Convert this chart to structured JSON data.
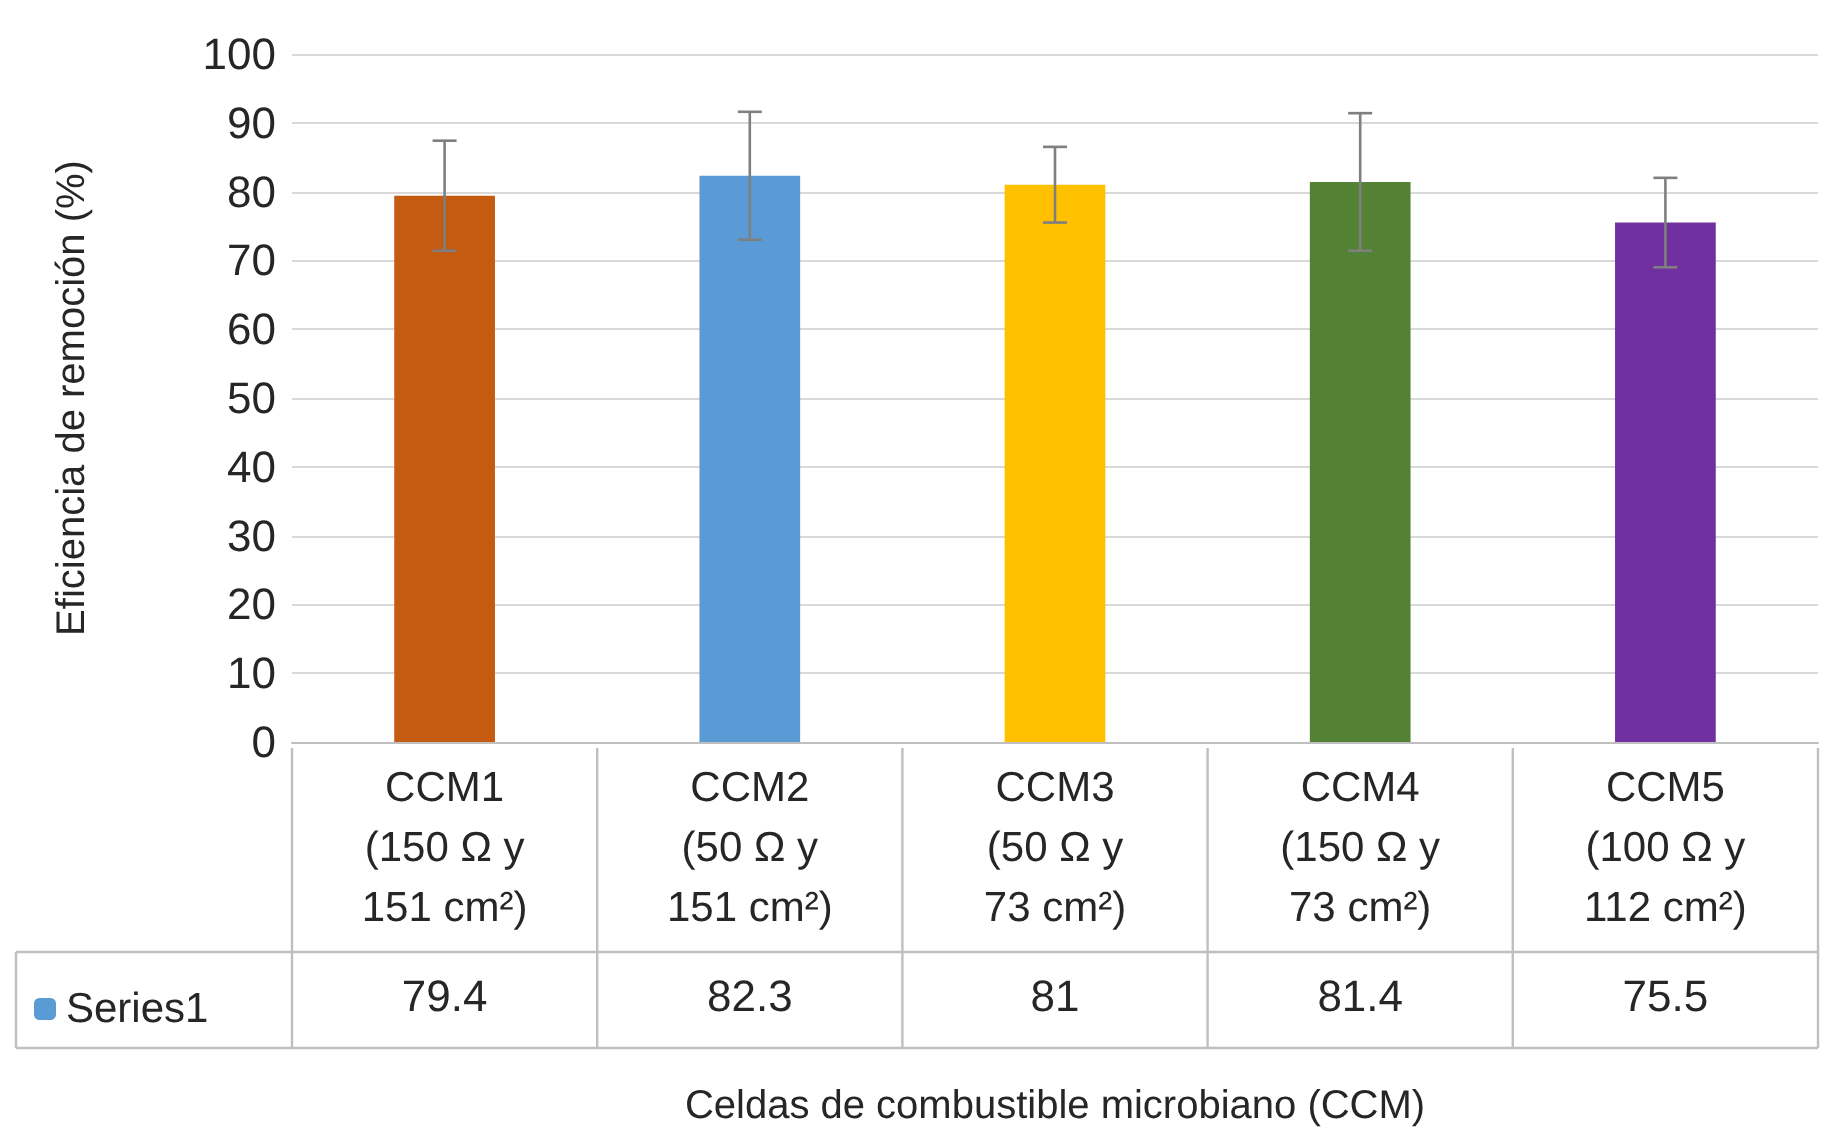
{
  "chart_data": {
    "type": "bar",
    "xlabel": "Celdas de combustible microbiano (CCM)",
    "ylabel": "Eficiencia de remoción (%)",
    "categories": [
      "CCM1\n(150 Ω y\n151 cm²)",
      "CCM2\n(50 Ω y\n151 cm²)",
      "CCM3\n(50 Ω y\n73 cm²)",
      "CCM4\n(150 Ω y\n73 cm²)",
      "CCM5\n(100 Ω y\n112 cm²)"
    ],
    "series": [
      {
        "name": "Series1",
        "color": "#5b9bd5",
        "values": [
          79.4,
          82.3,
          81,
          81.4,
          75.5
        ],
        "colors": [
          "#c55a11",
          "#5b9bd5",
          "#ffc000",
          "#548235",
          "#7030a0"
        ],
        "errors": [
          8,
          9.3,
          5.5,
          10,
          6.5
        ]
      }
    ],
    "ylim": [
      0,
      100
    ],
    "yticks": [
      0,
      10,
      20,
      30,
      40,
      50,
      60,
      70,
      80,
      90,
      100
    ],
    "grid": "y",
    "data_labels": true,
    "legend": "bottom left"
  }
}
